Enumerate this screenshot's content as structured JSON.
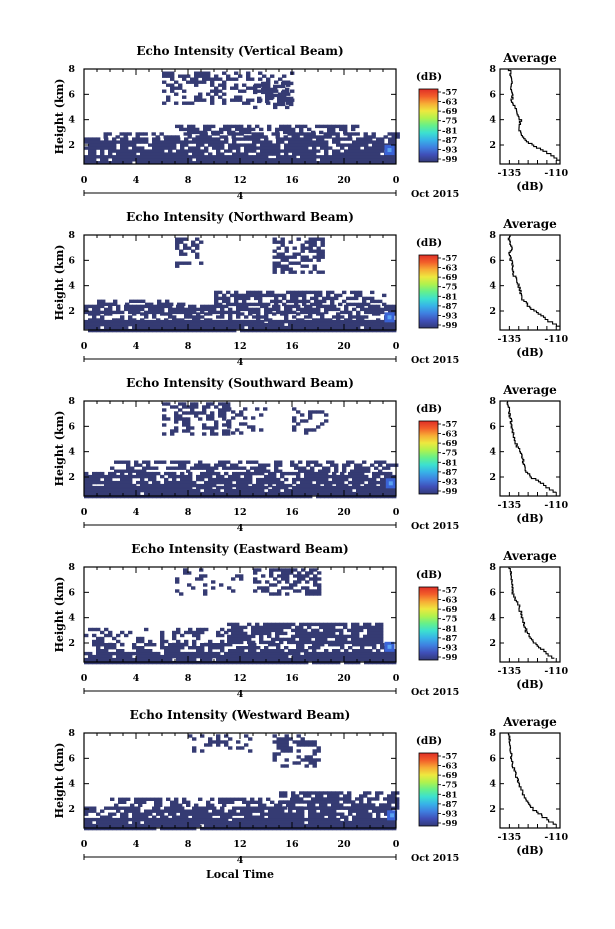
{
  "colors": {
    "echo_fill": "#353b73",
    "echo_strong": "#3a63d6",
    "colorbar": [
      "#333a78",
      "#3f4fb8",
      "#3f7fe0",
      "#37b2e8",
      "#3ce0d0",
      "#66f08a",
      "#b0f24e",
      "#eee83f",
      "#f7ac35",
      "#f25e2a",
      "#e02f26"
    ]
  },
  "x_axis": {
    "ticks": [
      "0",
      "4",
      "8",
      "12",
      "16",
      "20",
      "0"
    ],
    "date_marker": "4",
    "date_label": "Oct 2015",
    "label": "Local Time"
  },
  "colorbar": {
    "unit": "(dB)",
    "ticks": [
      "-57",
      "-63",
      "-69",
      "-75",
      "-81",
      "-87",
      "-93",
      "-99"
    ]
  },
  "average_panel": {
    "title": "Average",
    "xlabel": "(dB)",
    "xticks": [
      "-135",
      "-110"
    ],
    "yticks": [
      "8",
      "6",
      "4",
      "2"
    ]
  },
  "chart_data": [
    {
      "type": "heatmap",
      "title": "Echo Intensity (Vertical Beam)",
      "ylabel": "Height (km)",
      "yticks": [
        "8",
        "6",
        "4",
        "2"
      ],
      "xlim": [
        0,
        24
      ],
      "ylim": [
        0.5,
        8
      ],
      "clim": [
        -99,
        -57
      ],
      "echo_regions": [
        {
          "x0": 0,
          "x1": 24,
          "y0": 0.5,
          "y1": 1.2,
          "fill": 0.97
        },
        {
          "x0": 0,
          "x1": 24,
          "y0": 1.2,
          "y1": 2.6,
          "fill": 0.8
        },
        {
          "x0": 1.5,
          "x1": 24,
          "y0": 2.6,
          "y1": 3.0,
          "fill": 0.55
        },
        {
          "x0": 7,
          "x1": 21,
          "y0": 3.0,
          "y1": 3.6,
          "fill": 0.55
        },
        {
          "x0": 6,
          "x1": 16,
          "y0": 5.2,
          "y1": 7.8,
          "fill": 0.35
        },
        {
          "x0": 13,
          "x1": 16,
          "y0": 5.0,
          "y1": 7.0,
          "fill": 0.55
        }
      ],
      "strong_spots": [
        {
          "x": 23.5,
          "y": 1.6
        }
      ],
      "average_profile": {
        "height": [
          0.8,
          1.5,
          2.0,
          2.5,
          3.0,
          3.5,
          4.0,
          4.5,
          5.0,
          5.5,
          6.0,
          6.5,
          7.0,
          7.5,
          8.0
        ],
        "db": [
          -108,
          -115,
          -122,
          -127,
          -129,
          -130,
          -129,
          -131,
          -132,
          -134,
          -133,
          -134,
          -134,
          -134,
          -135
        ]
      }
    },
    {
      "type": "heatmap",
      "title": "Echo Intensity (Northward Beam)",
      "ylabel": "Height (km)",
      "yticks": [
        "8",
        "6",
        "4",
        "2"
      ],
      "xlim": [
        0,
        24
      ],
      "ylim": [
        0.5,
        8
      ],
      "clim": [
        -99,
        -57
      ],
      "echo_regions": [
        {
          "x0": 0,
          "x1": 24,
          "y0": 0.5,
          "y1": 1.3,
          "fill": 0.97
        },
        {
          "x0": 0,
          "x1": 24,
          "y0": 1.3,
          "y1": 1.9,
          "fill": 0.5
        },
        {
          "x0": 0,
          "x1": 24,
          "y0": 1.9,
          "y1": 2.5,
          "fill": 0.75
        },
        {
          "x0": 1,
          "x1": 8,
          "y0": 2.5,
          "y1": 2.9,
          "fill": 0.5
        },
        {
          "x0": 10,
          "x1": 23,
          "y0": 2.5,
          "y1": 3.6,
          "fill": 0.65
        },
        {
          "x0": 14.5,
          "x1": 18.5,
          "y0": 5.0,
          "y1": 7.8,
          "fill": 0.55
        },
        {
          "x0": 7,
          "x1": 9,
          "y0": 5.5,
          "y1": 7.8,
          "fill": 0.35
        }
      ],
      "strong_spots": [
        {
          "x": 23.5,
          "y": 1.5
        }
      ],
      "average_profile": {
        "height": [
          0.8,
          1.5,
          2.0,
          2.5,
          3.0,
          3.5,
          4.0,
          4.5,
          5.0,
          5.5,
          6.0,
          6.5,
          7.0,
          7.5,
          8.0
        ],
        "db": [
          -108,
          -116,
          -121,
          -125,
          -128,
          -129,
          -130,
          -131,
          -133,
          -133,
          -134,
          -135,
          -134,
          -135,
          -135
        ]
      }
    },
    {
      "type": "heatmap",
      "title": "Echo Intensity (Southward Beam)",
      "ylabel": "Height (km)",
      "yticks": [
        "8",
        "6",
        "4",
        "2"
      ],
      "xlim": [
        0,
        24
      ],
      "ylim": [
        0.5,
        8
      ],
      "clim": [
        -99,
        -57
      ],
      "echo_regions": [
        {
          "x0": 0,
          "x1": 24,
          "y0": 0.5,
          "y1": 1.3,
          "fill": 0.97
        },
        {
          "x0": 0,
          "x1": 24,
          "y0": 1.3,
          "y1": 2.4,
          "fill": 0.78
        },
        {
          "x0": 2,
          "x1": 24,
          "y0": 2.4,
          "y1": 3.3,
          "fill": 0.55
        },
        {
          "x0": 6,
          "x1": 11,
          "y0": 5.5,
          "y1": 7.9,
          "fill": 0.5
        },
        {
          "x0": 11,
          "x1": 14,
          "y0": 5.5,
          "y1": 7.5,
          "fill": 0.25
        },
        {
          "x0": 16,
          "x1": 18.5,
          "y0": 5.5,
          "y1": 7.5,
          "fill": 0.35
        }
      ],
      "strong_spots": [
        {
          "x": 23.6,
          "y": 1.5
        }
      ],
      "average_profile": {
        "height": [
          0.8,
          1.5,
          2.0,
          2.5,
          3.0,
          3.5,
          4.0,
          4.5,
          5.0,
          5.5,
          6.0,
          6.5,
          7.0,
          7.5,
          8.0
        ],
        "db": [
          -110,
          -117,
          -123,
          -126,
          -127,
          -128,
          -129,
          -131,
          -132,
          -133,
          -134,
          -134,
          -135,
          -135,
          -136
        ]
      }
    },
    {
      "type": "heatmap",
      "title": "Echo Intensity (Eastward Beam)",
      "ylabel": "Height (km)",
      "yticks": [
        "8",
        "6",
        "4",
        "2"
      ],
      "xlim": [
        0,
        24
      ],
      "ylim": [
        0.5,
        8
      ],
      "clim": [
        -99,
        -57
      ],
      "echo_regions": [
        {
          "x0": 0,
          "x1": 24,
          "y0": 0.5,
          "y1": 1.3,
          "fill": 0.97
        },
        {
          "x0": 0,
          "x1": 24,
          "y0": 1.3,
          "y1": 2.0,
          "fill": 0.55
        },
        {
          "x0": 0,
          "x1": 11,
          "y0": 2.0,
          "y1": 3.2,
          "fill": 0.35
        },
        {
          "x0": 11,
          "x1": 23,
          "y0": 2.0,
          "y1": 3.6,
          "fill": 0.8
        },
        {
          "x0": 13,
          "x1": 18,
          "y0": 5.8,
          "y1": 7.9,
          "fill": 0.6
        },
        {
          "x0": 7,
          "x1": 12,
          "y0": 6.0,
          "y1": 7.9,
          "fill": 0.2
        }
      ],
      "strong_spots": [
        {
          "x": 23.5,
          "y": 1.7
        }
      ],
      "average_profile": {
        "height": [
          0.8,
          1.5,
          2.0,
          2.5,
          3.0,
          3.5,
          4.0,
          4.5,
          5.0,
          5.5,
          6.0,
          6.5,
          7.0,
          7.5,
          8.0
        ],
        "db": [
          -111,
          -117,
          -121,
          -124,
          -126,
          -127,
          -128,
          -129,
          -130,
          -132,
          -133,
          -133,
          -134,
          -134,
          -135
        ]
      }
    },
    {
      "type": "heatmap",
      "title": "Echo Intensity (Westward Beam)",
      "ylabel": "Height (km)",
      "yticks": [
        "8",
        "6",
        "4",
        "2"
      ],
      "xlim": [
        0,
        24
      ],
      "ylim": [
        0.5,
        8
      ],
      "clim": [
        -99,
        -57
      ],
      "echo_regions": [
        {
          "x0": 0,
          "x1": 24,
          "y0": 0.5,
          "y1": 1.3,
          "fill": 0.97
        },
        {
          "x0": 0,
          "x1": 24,
          "y0": 1.3,
          "y1": 2.2,
          "fill": 0.7
        },
        {
          "x0": 2,
          "x1": 16,
          "y0": 2.2,
          "y1": 2.9,
          "fill": 0.45
        },
        {
          "x0": 15,
          "x1": 24,
          "y0": 2.2,
          "y1": 3.4,
          "fill": 0.7
        },
        {
          "x0": 14.5,
          "x1": 18,
          "y0": 5.5,
          "y1": 7.9,
          "fill": 0.5
        },
        {
          "x0": 8,
          "x1": 13,
          "y0": 6.5,
          "y1": 7.9,
          "fill": 0.25
        }
      ],
      "strong_spots": [
        {
          "x": 23.7,
          "y": 1.5
        }
      ],
      "average_profile": {
        "height": [
          0.8,
          1.5,
          2.0,
          2.5,
          3.0,
          3.5,
          4.0,
          4.5,
          5.0,
          5.5,
          6.0,
          6.5,
          7.0,
          7.5,
          8.0
        ],
        "db": [
          -110,
          -117,
          -122,
          -125,
          -127,
          -128,
          -130,
          -131,
          -132,
          -133,
          -134,
          -134,
          -135,
          -135,
          -135
        ]
      }
    }
  ]
}
